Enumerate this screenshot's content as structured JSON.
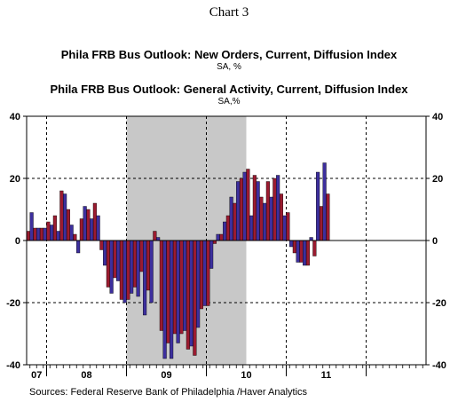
{
  "header": {
    "chart_title": "Chart 3",
    "series1_title": "Phila FRB Bus Outlook: New Orders, Current, Diffusion Index",
    "series1_unit": "SA, %",
    "series2_title": "Phila FRB Bus Outlook: General Activity, Current, Diffusion Index",
    "series2_unit": "SA,%"
  },
  "footer": {
    "source": "Sources:  Federal Reserve Bank of Philadelphia /Haver Analytics"
  },
  "colors": {
    "new_orders": "#9b1b30",
    "general_activity": "#3d2f9e",
    "recession_shade": "#c8c8c8"
  },
  "chart_data": {
    "type": "bar",
    "start": "2006-10",
    "frequency": "monthly",
    "ylim": [
      -40,
      40
    ],
    "yticks": [
      -40,
      -20,
      0,
      20,
      40
    ],
    "xticks": [
      "07",
      "08",
      "09",
      "10",
      "11"
    ],
    "xlim": [
      "2006-10",
      "2011-09"
    ],
    "grid": true,
    "recession_shading": {
      "start": "2008-01",
      "end": "2009-06"
    },
    "series": [
      {
        "name": "Phila FRB Bus Outlook: New Orders, Current, Diffusion Index",
        "values": [
          3,
          4,
          4,
          6,
          8,
          16,
          10,
          2,
          7,
          10,
          12,
          -3,
          -15,
          -12,
          -19,
          -19,
          -15,
          -10,
          -16,
          3,
          -29,
          -33,
          -30,
          -30,
          -35,
          -37,
          -22,
          -21,
          -1,
          2,
          8,
          12,
          20,
          23,
          21,
          14,
          19,
          20,
          15,
          9,
          -4,
          -7,
          -8,
          -5,
          11,
          15
        ]
      },
      {
        "name": "Phila FRB Bus Outlook: General Activity, Current, Diffusion Index",
        "values": [
          9,
          4,
          4,
          5,
          3,
          15,
          5,
          -4,
          11,
          7,
          8,
          -8,
          -17,
          -13,
          -20,
          -17,
          -18,
          -24,
          -20,
          1,
          -38,
          -38,
          -33,
          -29,
          -34,
          -28,
          -21,
          -9,
          2,
          6,
          14,
          19,
          22,
          8,
          19,
          12,
          14,
          21,
          8,
          -2,
          -7,
          -8,
          1,
          22,
          25,
          0
        ]
      }
    ]
  }
}
